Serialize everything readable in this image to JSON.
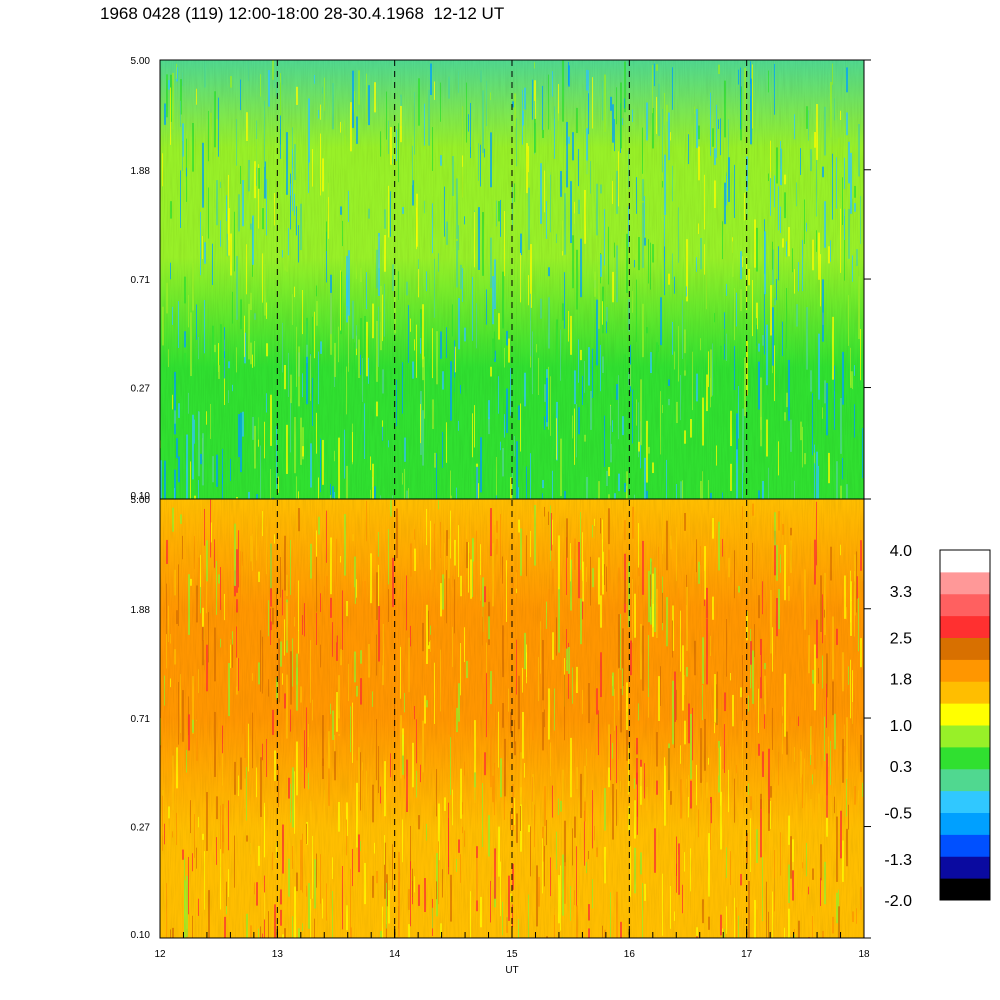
{
  "chart_data": {
    "type": "heatmap",
    "title": "1968 0428 (119) 12:00-18:00 28-30.4.1968  12-12 UT",
    "xlabel": "UT",
    "x_ticks": [
      "12",
      "13",
      "14",
      "15",
      "16",
      "17",
      "18"
    ],
    "x_range": [
      12,
      18
    ],
    "y_scale": "log",
    "panels": [
      {
        "name": "upper",
        "y_ticks": [
          "5.00",
          "1.88",
          "0.71",
          "0.27",
          "0.10"
        ],
        "y_range": [
          0.1,
          5.0
        ],
        "dominant_level": 0.3
      },
      {
        "name": "lower",
        "y_ticks": [
          "5.00",
          "1.88",
          "0.71",
          "0.27",
          "0.10"
        ],
        "y_range": [
          0.1,
          5.0
        ],
        "dominant_level": 1.8
      }
    ],
    "vertical_dashed_lines_at": [
      13,
      14,
      15,
      16,
      17
    ],
    "colorbar": {
      "labels": [
        "4.0",
        "3.3",
        "2.5",
        "1.8",
        "1.0",
        "0.3",
        "-0.5",
        "-1.3",
        "-2.0"
      ],
      "range": [
        -2.0,
        4.0
      ],
      "colors": [
        "#000000",
        "#0a0aa0",
        "#0050ff",
        "#00a0ff",
        "#30c8ff",
        "#50d890",
        "#30e030",
        "#98f028",
        "#ffff00",
        "#ffbe00",
        "#ff9600",
        "#d87000",
        "#ff3030",
        "#ff6060",
        "#ff9898",
        "#ffffff"
      ]
    }
  }
}
